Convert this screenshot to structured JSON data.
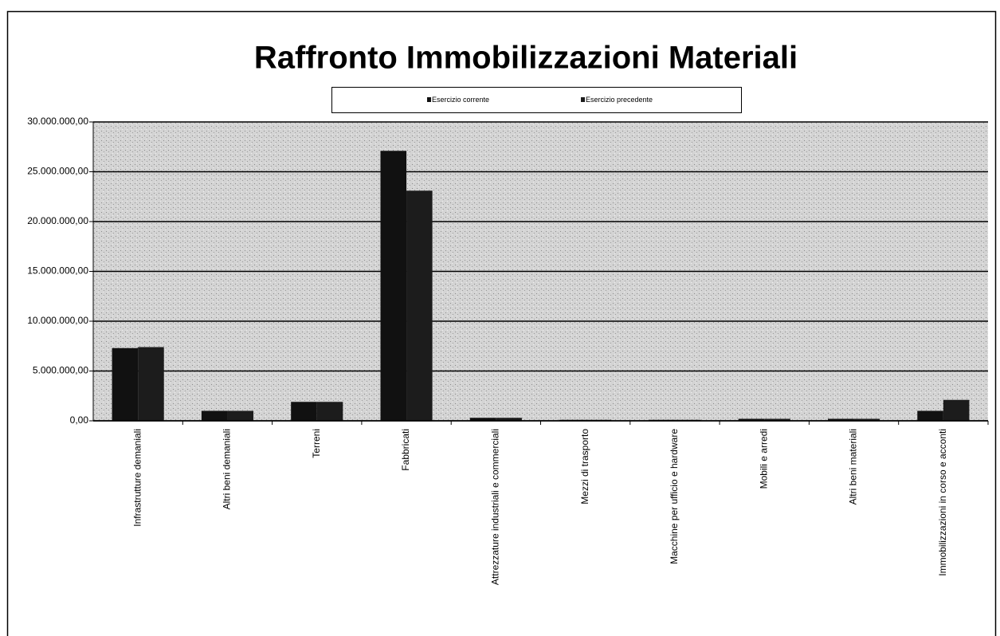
{
  "chart_data": {
    "type": "bar",
    "title": "Raffronto Immobilizzazioni Materiali",
    "categories": [
      "Infrastrutture demaniali",
      "Altri beni demaniali",
      "Terreni",
      "Fabbricati",
      "Attrezzature industriali e commerciali",
      "Mezzi di trasporto",
      "Macchine per ufficio e hardware",
      "Mobili e arredi",
      "Altri beni materiali",
      "Immobilizzazioni in corso e acconti"
    ],
    "series": [
      {
        "name": "Esercizio corrente",
        "color": "#111111",
        "values": [
          7300000,
          1000000,
          1900000,
          27100000,
          300000,
          100000,
          100000,
          200000,
          200000,
          1000000
        ]
      },
      {
        "name": "Esercizio precedente",
        "color": "#1c1c1c",
        "values": [
          7400000,
          1000000,
          1900000,
          23100000,
          300000,
          100000,
          100000,
          200000,
          200000,
          2100000
        ]
      }
    ],
    "ylim": [
      0,
      30000000
    ],
    "yticks": [
      {
        "value": 0,
        "label": "0,00"
      },
      {
        "value": 5000000,
        "label": "5.000.000,00"
      },
      {
        "value": 10000000,
        "label": "10.000.000,00"
      },
      {
        "value": 15000000,
        "label": "15.000.000,00"
      },
      {
        "value": 20000000,
        "label": "20.000.000,00"
      },
      {
        "value": 25000000,
        "label": "25.000.000,00"
      },
      {
        "value": 30000000,
        "label": "30.000.000,00"
      }
    ],
    "grid": true,
    "legend": "top"
  }
}
